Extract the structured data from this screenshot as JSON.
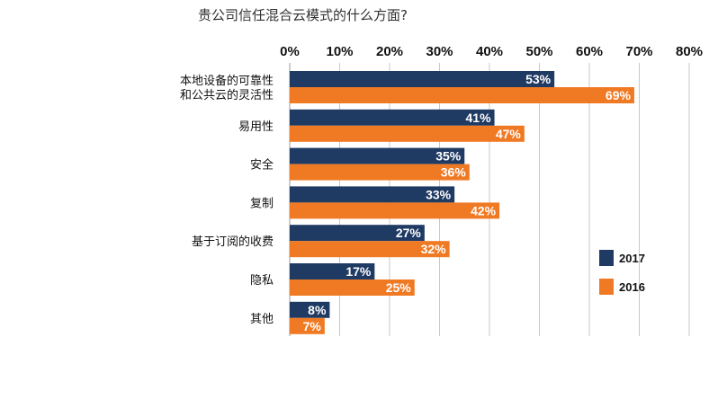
{
  "chart_data": {
    "type": "bar",
    "orientation": "horizontal",
    "title": "贵公司信任混合云模式的什么方面?",
    "categories": [
      [
        "本地设备的可靠性",
        "和公共云的灵活性"
      ],
      [
        "易用性"
      ],
      [
        "安全"
      ],
      [
        "复制"
      ],
      [
        "基于订阅的收费"
      ],
      [
        "隐私"
      ],
      [
        "其他"
      ]
    ],
    "series": [
      {
        "name": "2017",
        "color": "#1f3a63",
        "values": [
          53,
          41,
          35,
          33,
          27,
          17,
          8
        ]
      },
      {
        "name": "2016",
        "color": "#f07a24",
        "values": [
          69,
          47,
          36,
          42,
          32,
          25,
          7
        ]
      }
    ],
    "xlim": [
      0,
      80
    ],
    "xticks": [
      "0%",
      "10%",
      "20%",
      "30%",
      "40%",
      "50%",
      "60%",
      "70%",
      "80%"
    ],
    "value_suffix": "%",
    "grid": true,
    "axis_position": "top",
    "legend_position": "right"
  }
}
